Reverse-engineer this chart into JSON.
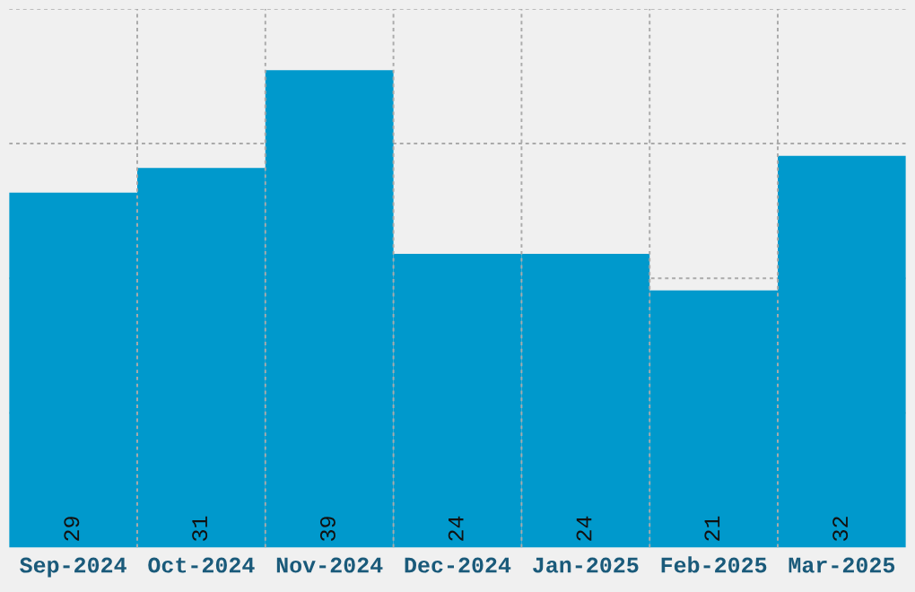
{
  "chart_data": {
    "type": "bar",
    "categories": [
      "Sep-2024",
      "Oct-2024",
      "Nov-2024",
      "Dec-2024",
      "Jan-2025",
      "Feb-2025",
      "Mar-2025"
    ],
    "values": [
      29,
      31,
      39,
      24,
      24,
      21,
      32
    ],
    "color": "#0099cc",
    "data_labels": true,
    "ylim": [
      0,
      44
    ],
    "yticks": [
      {
        "value": 11,
        "label": null
      },
      {
        "value": 22,
        "label": null
      },
      {
        "value": 33,
        "label": null
      },
      {
        "value": 44,
        "label": null
      }
    ],
    "tick_labels": "x",
    "grid": true
  }
}
